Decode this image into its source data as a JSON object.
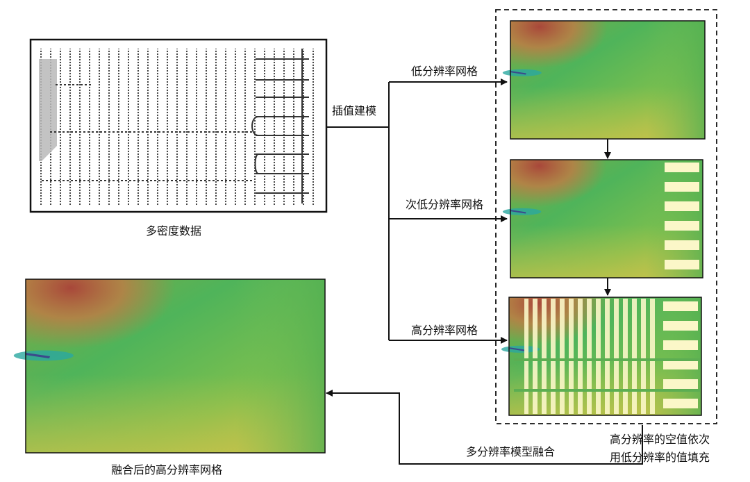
{
  "labels": {
    "input_data": "多密度数据",
    "interpolation": "插值建模",
    "low_res": "低分辨率网格",
    "sub_low_res": "次低分辨率网格",
    "high_res": "高分辨率网格",
    "fusion": "多分辨率模型融合",
    "fill_note_line1": "高分辨率的空值依次",
    "fill_note_line2": "用低分辨率的值填充",
    "fused_result": "融合后的高分辨率网格"
  },
  "colors": {
    "terrain_high": "#b5533a",
    "terrain_mid": "#5cb85a",
    "terrain_low": "#c9c24a",
    "water": "#2aa8a0",
    "void_fill": "#fbf7c8",
    "line": "#111111"
  }
}
